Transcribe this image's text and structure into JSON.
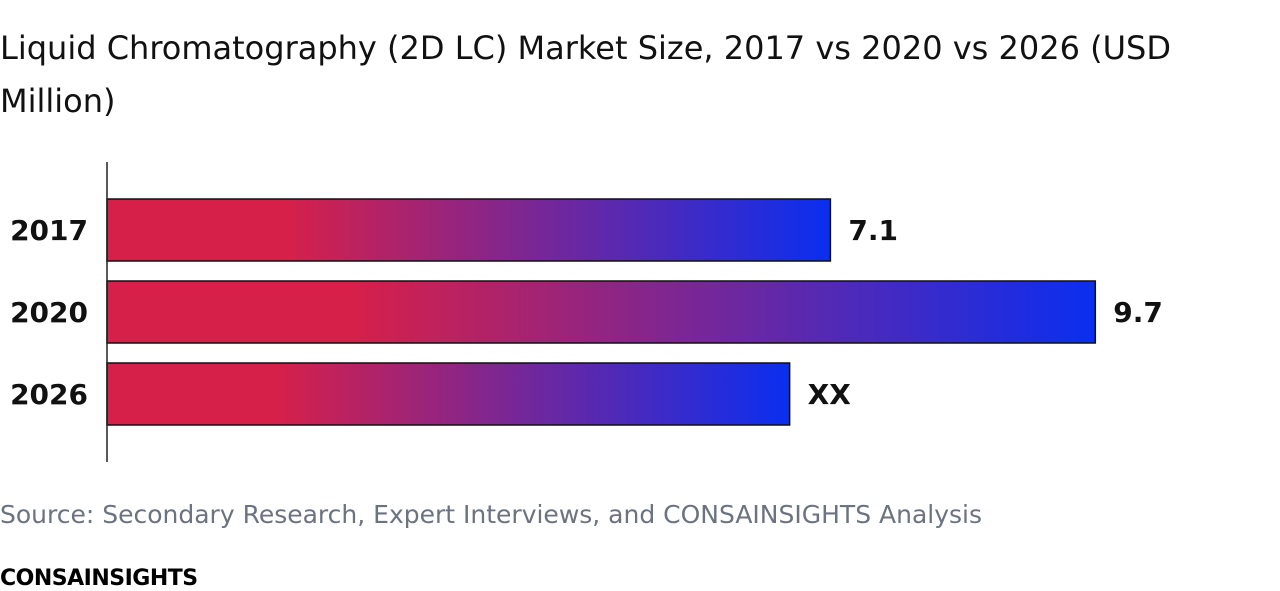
{
  "header": {
    "title": "Liquid Chromatography (2D LC) Market Size, 2017 vs 2020 vs 2026 (USD Million)"
  },
  "footer": {
    "source": "Source: Secondary Research, Expert Interviews, and CONSAINSIGHTS Analysis",
    "brand": "CONSAINSIGHTS"
  },
  "chart_data": {
    "type": "bar",
    "orientation": "horizontal",
    "categories": [
      "2017",
      "2020",
      "2026"
    ],
    "values": [
      7.1,
      9.7,
      6.7
    ],
    "data_labels": [
      "7.1",
      "9.7",
      "XX"
    ],
    "xlim": [
      0,
      10.6
    ],
    "grid": false,
    "colors": {
      "gradient_start": "#d6204a",
      "gradient_end": "#0a2ef0"
    }
  }
}
